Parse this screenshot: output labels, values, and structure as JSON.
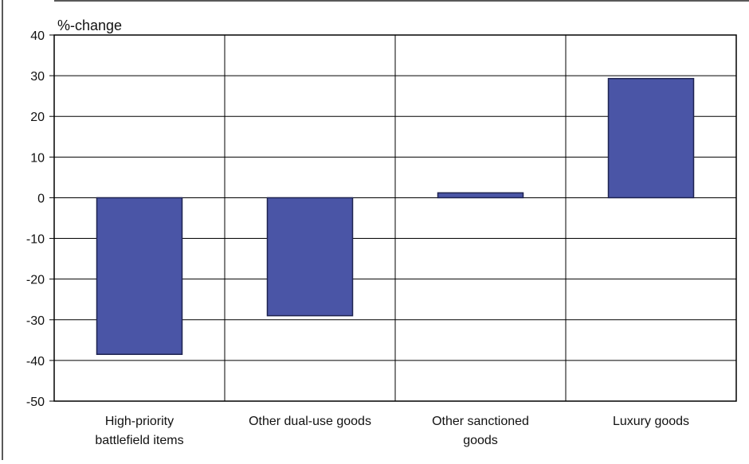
{
  "chart_data": {
    "type": "bar",
    "ylabel": "%-change",
    "categories": [
      [
        "High-priority",
        "battlefield items"
      ],
      [
        "Other dual-use goods"
      ],
      [
        "Other sanctioned",
        "goods"
      ],
      [
        "Luxury goods"
      ]
    ],
    "values": [
      -38.5,
      -29,
      1.2,
      29.3
    ],
    "ylim": [
      -50,
      40
    ],
    "yticks": [
      40,
      30,
      20,
      10,
      0,
      -10,
      -20,
      -30,
      -40,
      -50
    ],
    "grid": true,
    "bar_color": "#4a55a6",
    "bar_edge_color": "#1e2350"
  }
}
